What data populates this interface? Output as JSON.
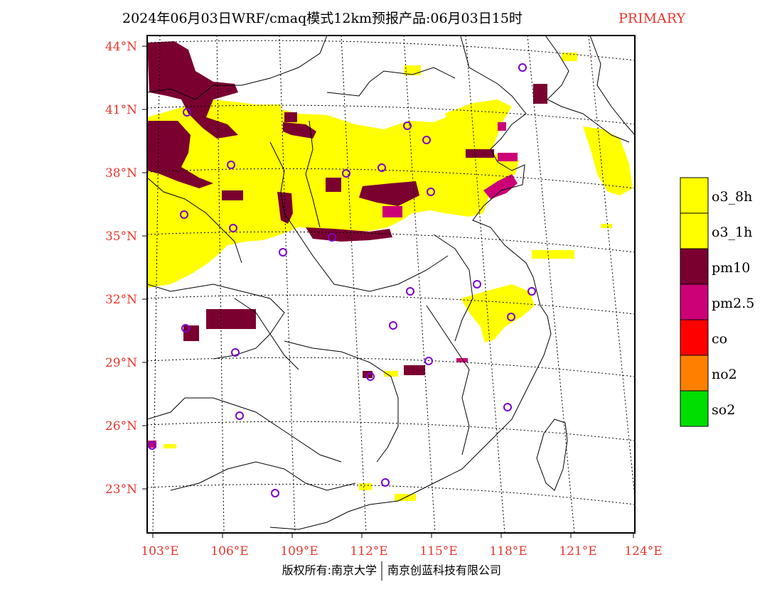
{
  "title": {
    "main": "2024年06月03日WRF/cmaq模式12km预报产品:06月03日15时",
    "tag": "PRIMARY"
  },
  "map": {
    "lat_ticks": [
      "44°N",
      "41°N",
      "38°N",
      "35°N",
      "32°N",
      "29°N",
      "26°N",
      "23°N"
    ],
    "lon_ticks": [
      "103°E",
      "106°E",
      "109°E",
      "112°E",
      "115°E",
      "118°E",
      "121°E",
      "124°E"
    ],
    "lon_range": [
      102.7,
      124.0
    ],
    "lat_range": [
      21.0,
      44.5
    ],
    "colors": {
      "o3": "#ffff00",
      "pm10": "#7a0030",
      "pm25": "#cc0077",
      "station": "#7a00cc",
      "boundary": "#000000",
      "grid": "#000000"
    }
  },
  "legend": {
    "items": [
      {
        "label": "o3_8h",
        "color": "#ffff00"
      },
      {
        "label": "o3_1h",
        "color": "#ffff00"
      },
      {
        "label": "pm10",
        "color": "#7a0030"
      },
      {
        "label": "pm2.5",
        "color": "#cc0077"
      },
      {
        "label": "co",
        "color": "#ff0000"
      },
      {
        "label": "no2",
        "color": "#ff8000"
      },
      {
        "label": "so2",
        "color": "#00dd00"
      }
    ]
  },
  "footer": {
    "left": "版权所有:南京大学",
    "right": "南京创蓝科技有限公司"
  }
}
